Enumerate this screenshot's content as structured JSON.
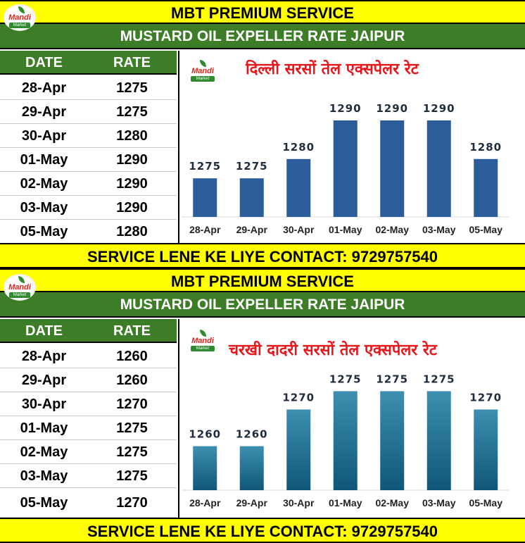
{
  "colors": {
    "banner_yellow": "#ffff00",
    "header_green": "#3e7d27",
    "bar_blue": "#2b5d9a",
    "bar_teal": "#1e6b8c",
    "title_red": "#e8161b"
  },
  "logo": {
    "text": "Mandi",
    "sub": "Market",
    "icon": "leaf-icon"
  },
  "panels": [
    {
      "banner": "MBT PREMIUM SERVICE",
      "subtitle": "MUSTARD OIL EXPELLER RATE JAIPUR",
      "table": {
        "headers": [
          "DATE",
          "RATE"
        ],
        "rows": [
          [
            "28-Apr",
            "1275"
          ],
          [
            "29-Apr",
            "1275"
          ],
          [
            "30-Apr",
            "1280"
          ],
          [
            "01-May",
            "1290"
          ],
          [
            "02-May",
            "1290"
          ],
          [
            "03-May",
            "1290"
          ],
          [
            "05-May",
            "1280"
          ]
        ]
      },
      "footer": "SERVICE LENE KE LIYE CONTACT: 9729757540"
    },
    {
      "banner": "MBT PREMIUM SERVICE",
      "subtitle": "MUSTARD OIL EXPELLER RATE JAIPUR",
      "table": {
        "headers": [
          "DATE",
          "RATE"
        ],
        "rows": [
          [
            "28-Apr",
            "1260"
          ],
          [
            "29-Apr",
            "1260"
          ],
          [
            "30-Apr",
            "1270"
          ],
          [
            "01-May",
            "1275"
          ],
          [
            "02-May",
            "1275"
          ],
          [
            "03-May",
            "1275"
          ],
          [
            "05-May",
            "1270"
          ]
        ]
      },
      "footer": "SERVICE LENE KE LIYE CONTACT: 9729757540"
    }
  ],
  "chart_data": [
    {
      "type": "bar",
      "title": "दिल्ली सरसों तेल एक्सपेलर रेट",
      "categories": [
        "28-Apr",
        "29-Apr",
        "30-Apr",
        "01-May",
        "02-May",
        "03-May",
        "05-May"
      ],
      "values": [
        1275,
        1275,
        1280,
        1290,
        1290,
        1290,
        1280
      ],
      "ylim": [
        1265,
        1292
      ],
      "grid": false,
      "data_labels": true
    },
    {
      "type": "bar",
      "title": "चरखी दादरी सरसों तेल एक्सपेलर रेट",
      "categories": [
        "28-Apr",
        "29-Apr",
        "30-Apr",
        "01-May",
        "02-May",
        "03-May",
        "05-May"
      ],
      "values": [
        1260,
        1260,
        1270,
        1275,
        1275,
        1275,
        1270
      ],
      "ylim": [
        1248,
        1277
      ],
      "grid": false,
      "data_labels": true
    }
  ]
}
